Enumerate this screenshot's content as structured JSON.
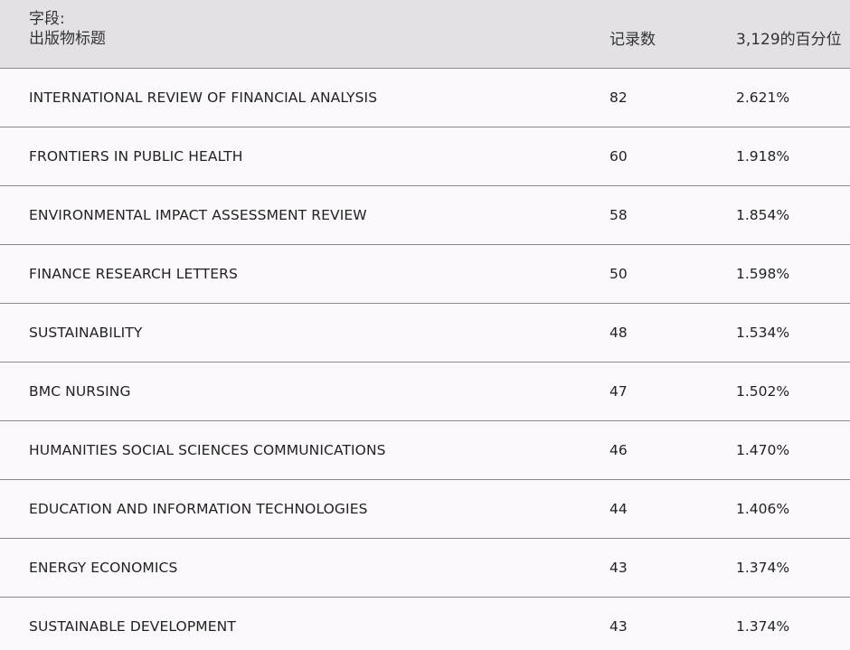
{
  "header": {
    "field_label": "字段:",
    "field_name": "出版物标题",
    "count_label": "记录数",
    "percent_label": "3,129的百分位"
  },
  "rows": [
    {
      "title": "INTERNATIONAL REVIEW OF FINANCIAL ANALYSIS",
      "count": "82",
      "percent": "2.621%"
    },
    {
      "title": "FRONTIERS IN PUBLIC HEALTH",
      "count": "60",
      "percent": "1.918%"
    },
    {
      "title": "ENVIRONMENTAL IMPACT ASSESSMENT REVIEW",
      "count": "58",
      "percent": "1.854%"
    },
    {
      "title": "FINANCE RESEARCH LETTERS",
      "count": "50",
      "percent": "1.598%"
    },
    {
      "title": "SUSTAINABILITY",
      "count": "48",
      "percent": "1.534%"
    },
    {
      "title": "BMC NURSING",
      "count": "47",
      "percent": "1.502%"
    },
    {
      "title": "HUMANITIES SOCIAL SCIENCES COMMUNICATIONS",
      "count": "46",
      "percent": "1.470%"
    },
    {
      "title": "EDUCATION AND INFORMATION TECHNOLOGIES",
      "count": "44",
      "percent": "1.406%"
    },
    {
      "title": "ENERGY ECONOMICS",
      "count": "43",
      "percent": "1.374%"
    },
    {
      "title": "SUSTAINABLE DEVELOPMENT",
      "count": "43",
      "percent": "1.374%"
    }
  ],
  "colors": {
    "header_bg": "#e3e1e6",
    "row_bg": "#fcf9fd",
    "divider": "#8a8a8e",
    "text": "#222222"
  }
}
